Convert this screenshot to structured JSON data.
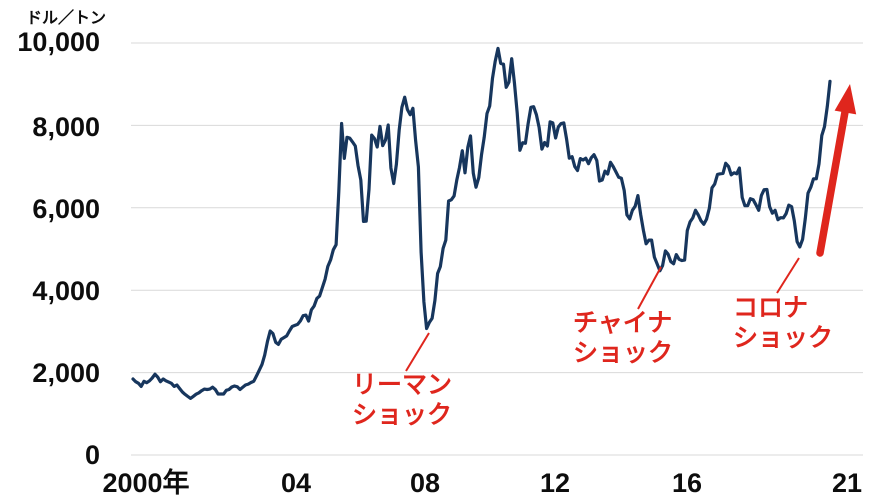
{
  "unit_label": "ドル／トン",
  "colors": {
    "price_line": "#17365d",
    "accent_red": "#df261d",
    "gridline": "#d9d9d9",
    "text": "#0d0d0d"
  },
  "y_axis": {
    "ticks_top_to_bottom": [
      "10,000",
      "8,000",
      "6,000",
      "4,000",
      "2,000",
      "0"
    ]
  },
  "x_axis": {
    "ticks": [
      "2000年",
      "04",
      "08",
      "12",
      "16",
      "21"
    ]
  },
  "annotations": {
    "lehman": {
      "line1": "リーマン",
      "line2": "ショック"
    },
    "china": {
      "line1": "チャイナ",
      "line2": "ショック"
    },
    "corona": {
      "line1": "コロナ",
      "line2": "ショック"
    }
  },
  "chart_data": {
    "type": "line",
    "title": "",
    "ylabel": "ドル／トン",
    "xlabel": "",
    "frequency": "monthly",
    "x_start": "2000-01",
    "x_end": "2021-03",
    "ylim": [
      0,
      10000
    ],
    "y_tick_values": [
      0,
      2000,
      4000,
      6000,
      8000,
      10000
    ],
    "x_tick_labels": [
      "2000年",
      "04",
      "08",
      "12",
      "16",
      "21"
    ],
    "grid": "horizontal-only",
    "legend": "none",
    "values": [
      1845,
      1780,
      1740,
      1665,
      1790,
      1755,
      1800,
      1870,
      1960,
      1890,
      1780,
      1845,
      1800,
      1770,
      1740,
      1665,
      1700,
      1615,
      1530,
      1470,
      1420,
      1375,
      1425,
      1475,
      1510,
      1560,
      1600,
      1590,
      1600,
      1645,
      1590,
      1480,
      1480,
      1480,
      1570,
      1590,
      1650,
      1675,
      1655,
      1590,
      1645,
      1700,
      1720,
      1760,
      1790,
      1920,
      2055,
      2200,
      2425,
      2760,
      3010,
      2950,
      2735,
      2685,
      2810,
      2850,
      2890,
      3010,
      3120,
      3145,
      3170,
      3255,
      3380,
      3395,
      3250,
      3525,
      3615,
      3800,
      3860,
      4060,
      4270,
      4575,
      4735,
      4980,
      5105,
      6390,
      8045,
      7200,
      7710,
      7690,
      7600,
      7500,
      7030,
      6675,
      5670,
      5675,
      6450,
      7765,
      7680,
      7475,
      7975,
      7510,
      7645,
      8010,
      6965,
      6590,
      7060,
      7890,
      8440,
      8685,
      8385,
      8260,
      8415,
      7635,
      6990,
      4925,
      3715,
      3070,
      3220,
      3315,
      3750,
      4405,
      4570,
      5015,
      5215,
      6165,
      6195,
      6290,
      6675,
      6980,
      7385,
      6850,
      7465,
      7745,
      6840,
      6500,
      6735,
      7285,
      7710,
      8290,
      8470,
      9145,
      9555,
      9870,
      9505,
      9485,
      8925,
      9045,
      9620,
      9040,
      8300,
      7395,
      7580,
      7565,
      8040,
      8440,
      8455,
      8260,
      7955,
      7425,
      7585,
      7500,
      8085,
      8060,
      7695,
      7960,
      8045,
      8060,
      7665,
      7205,
      7240,
      7000,
      6905,
      7195,
      7160,
      7205,
      7070,
      7215,
      7290,
      7150,
      6650,
      6675,
      6890,
      6820,
      7105,
      7000,
      6870,
      6740,
      6715,
      6420,
      5830,
      5730,
      5940,
      6040,
      6295,
      5835,
      5455,
      5125,
      5215,
      5215,
      4800,
      4640,
      4470,
      4600,
      4955,
      4875,
      4695,
      4640,
      4865,
      4750,
      4720,
      4730,
      5450,
      5660,
      5755,
      5940,
      5825,
      5685,
      5600,
      5720,
      5985,
      6485,
      6575,
      6810,
      6825,
      6835,
      7080,
      7005,
      6800,
      6850,
      6825,
      6965,
      6250,
      6050,
      6050,
      6220,
      6195,
      6075,
      5940,
      6300,
      6440,
      6445,
      6030,
      5870,
      5940,
      5710,
      5760,
      5755,
      5860,
      6065,
      6030,
      5685,
      5180,
      5050,
      5235,
      5740,
      6355,
      6500,
      6705,
      6705,
      7065,
      7755,
      7970,
      8460,
      9070
    ],
    "annotations": [
      {
        "text": "リーマンショック",
        "points_to": "2008-12",
        "value": 3070
      },
      {
        "text": "チャイナショック",
        "points_to": "2016-01",
        "value": 4470
      },
      {
        "text": "コロナショック",
        "points_to": "2020-04",
        "value": 5050
      }
    ]
  }
}
